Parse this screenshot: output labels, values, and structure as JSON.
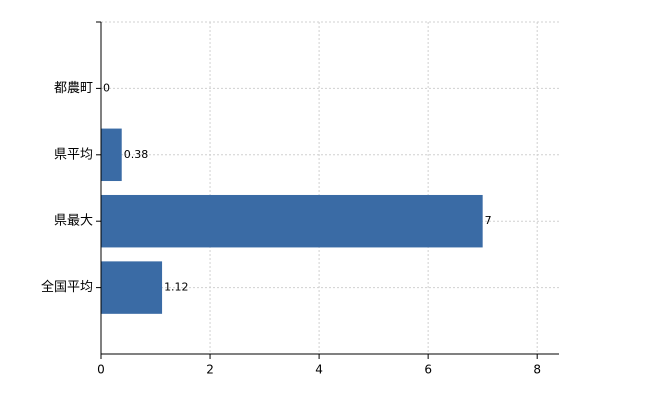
{
  "chart_data": {
    "type": "hbar",
    "categories": [
      "都農町",
      "県平均",
      "県最大",
      "全国平均"
    ],
    "values": [
      0,
      0.38,
      7,
      1.12
    ],
    "color": "#3a6ba5",
    "xlim": [
      0,
      8.4
    ],
    "xticks": [
      0,
      2,
      4,
      6,
      8
    ],
    "grid": true
  }
}
